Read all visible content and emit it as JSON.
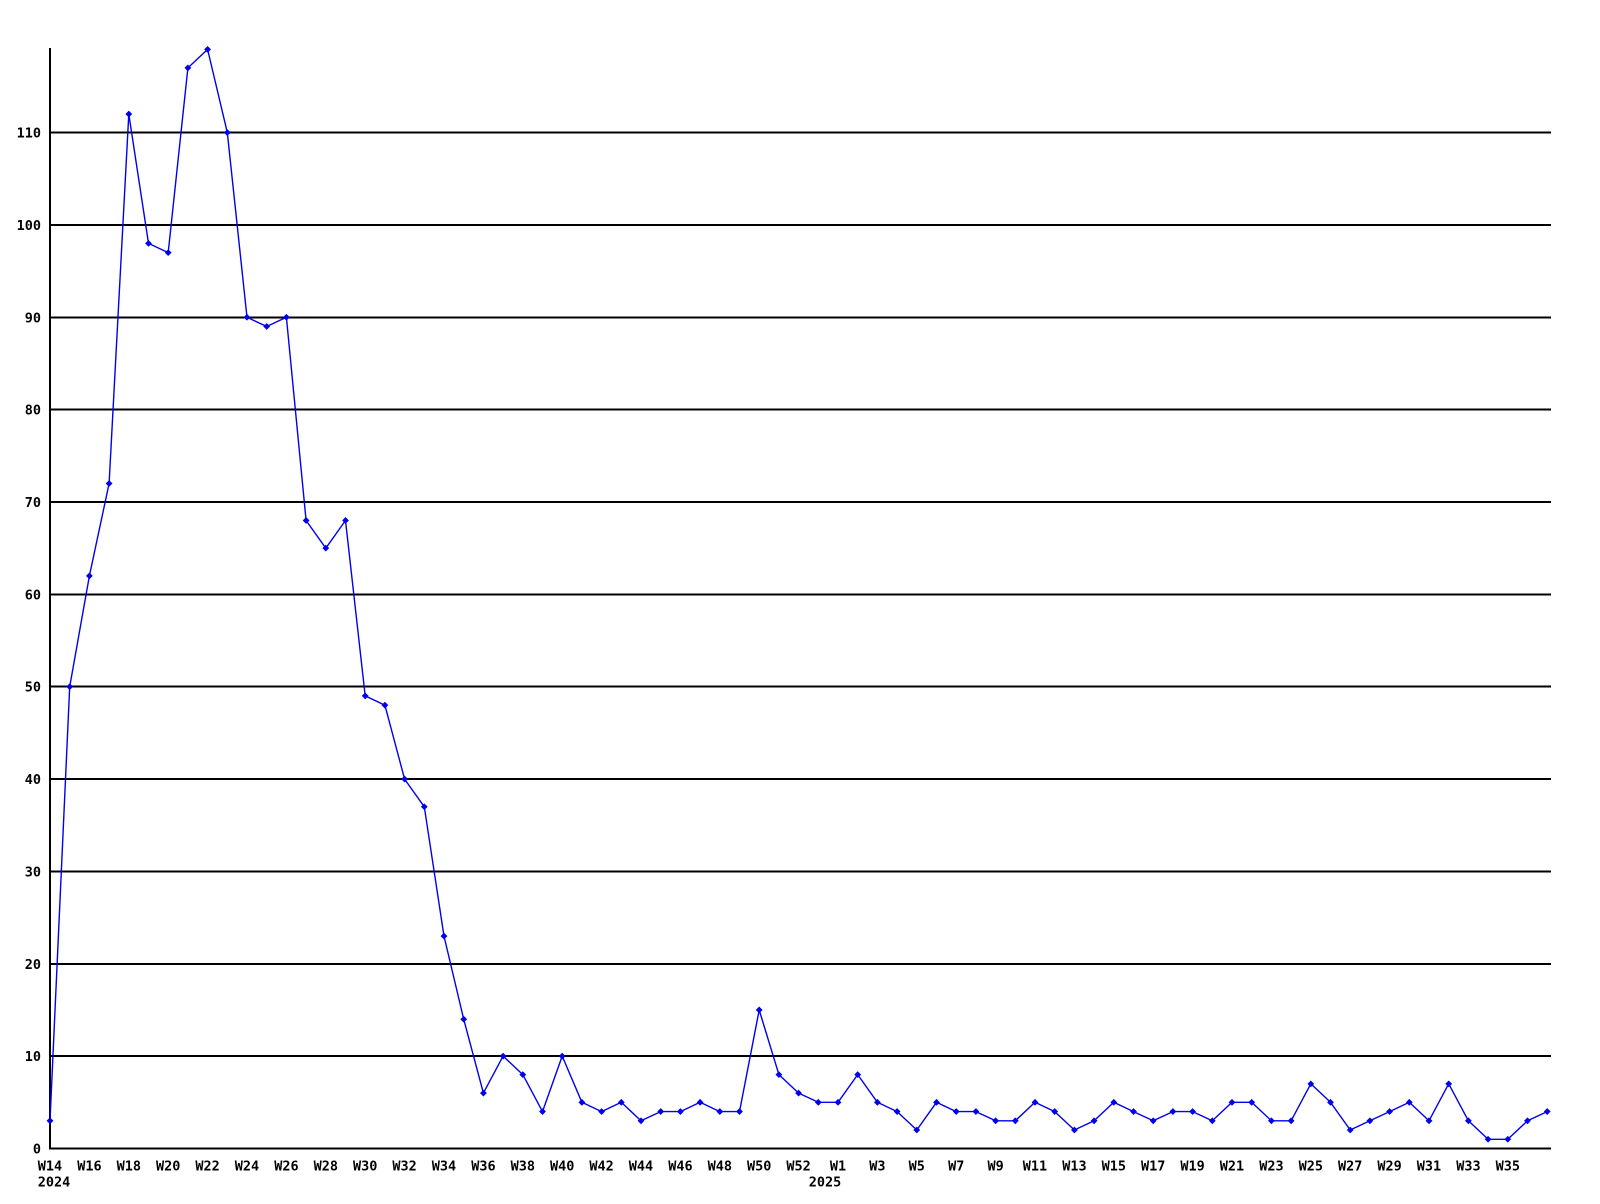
{
  "chart_data": {
    "type": "line",
    "series_name": "weekly-values",
    "x_unit": "ISO week",
    "x": [
      "W14",
      "W15",
      "W16",
      "W17",
      "W18",
      "W19",
      "W20",
      "W21",
      "W22",
      "W23",
      "W24",
      "W25",
      "W26",
      "W27",
      "W28",
      "W29",
      "W30",
      "W31",
      "W32",
      "W33",
      "W34",
      "W35",
      "W36",
      "W37",
      "W38",
      "W39",
      "W40",
      "W41",
      "W42",
      "W43",
      "W44",
      "W45",
      "W46",
      "W47",
      "W48",
      "W49",
      "W50",
      "W51",
      "W52",
      "W53",
      "W1",
      "W2",
      "W3",
      "W4",
      "W5",
      "W6",
      "W7",
      "W8",
      "W9",
      "W10",
      "W11",
      "W12",
      "W13",
      "W14",
      "W15",
      "W16",
      "W17",
      "W18",
      "W19",
      "W20",
      "W21",
      "W22",
      "W23",
      "W24",
      "W25",
      "W26",
      "W27",
      "W28",
      "W29",
      "W30",
      "W31",
      "W32",
      "W33",
      "W34",
      "W35",
      "W36",
      "W37"
    ],
    "values": [
      3,
      50,
      62,
      72,
      112,
      98,
      97,
      117,
      119,
      110,
      90,
      89,
      90,
      68,
      65,
      68,
      49,
      48,
      40,
      37,
      23,
      14,
      6,
      10,
      8,
      4,
      10,
      5,
      4,
      5,
      3,
      4,
      4,
      5,
      4,
      4,
      15,
      8,
      6,
      5,
      5,
      8,
      5,
      4,
      2,
      5,
      4,
      4,
      3,
      3,
      5,
      4,
      2,
      3,
      5,
      4,
      3,
      4,
      4,
      3,
      5,
      5,
      3,
      3,
      7,
      5,
      2,
      3,
      4,
      5,
      3,
      7,
      3,
      1,
      1,
      3,
      4
    ],
    "x_ticks": [
      {
        "i": 0,
        "label": "W14"
      },
      {
        "i": 2,
        "label": "W16"
      },
      {
        "i": 4,
        "label": "W18"
      },
      {
        "i": 6,
        "label": "W20"
      },
      {
        "i": 8,
        "label": "W22"
      },
      {
        "i": 10,
        "label": "W24"
      },
      {
        "i": 12,
        "label": "W26"
      },
      {
        "i": 14,
        "label": "W28"
      },
      {
        "i": 16,
        "label": "W30"
      },
      {
        "i": 18,
        "label": "W32"
      },
      {
        "i": 20,
        "label": "W34"
      },
      {
        "i": 22,
        "label": "W36"
      },
      {
        "i": 24,
        "label": "W38"
      },
      {
        "i": 26,
        "label": "W40"
      },
      {
        "i": 28,
        "label": "W42"
      },
      {
        "i": 30,
        "label": "W44"
      },
      {
        "i": 32,
        "label": "W46"
      },
      {
        "i": 34,
        "label": "W48"
      },
      {
        "i": 36,
        "label": "W50"
      },
      {
        "i": 38,
        "label": "W52"
      },
      {
        "i": 40,
        "label": "W1"
      },
      {
        "i": 42,
        "label": "W3"
      },
      {
        "i": 44,
        "label": "W5"
      },
      {
        "i": 46,
        "label": "W7"
      },
      {
        "i": 48,
        "label": "W9"
      },
      {
        "i": 50,
        "label": "W11"
      },
      {
        "i": 52,
        "label": "W13"
      },
      {
        "i": 54,
        "label": "W15"
      },
      {
        "i": 56,
        "label": "W17"
      },
      {
        "i": 58,
        "label": "W19"
      },
      {
        "i": 60,
        "label": "W21"
      },
      {
        "i": 62,
        "label": "W23"
      },
      {
        "i": 64,
        "label": "W25"
      },
      {
        "i": 66,
        "label": "W27"
      },
      {
        "i": 68,
        "label": "W29"
      },
      {
        "i": 70,
        "label": "W31"
      },
      {
        "i": 72,
        "label": "W33"
      },
      {
        "i": 74,
        "label": "W35"
      }
    ],
    "year_labels": [
      {
        "i": 0,
        "label": "2024",
        "dx": 4
      },
      {
        "i": 40,
        "label": "2025",
        "dx": -13
      }
    ],
    "yticks": [
      0,
      10,
      20,
      30,
      40,
      50,
      60,
      70,
      80,
      90,
      100,
      110
    ],
    "ylim": [
      0,
      119
    ],
    "grid": "horizontal",
    "legend": "none",
    "marker": "diamond",
    "line_color": "#0000ee",
    "grid_color": "#000000",
    "text_color": "#000000",
    "background": "#ffffff"
  }
}
